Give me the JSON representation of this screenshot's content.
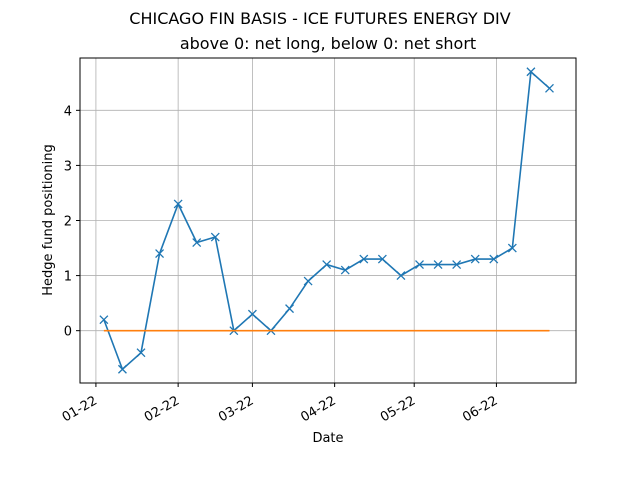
{
  "chart_data": {
    "type": "line",
    "title": "CHICAGO FIN BASIS - ICE FUTURES ENERGY DIV",
    "subtitle": "above 0: net long, below 0: net short",
    "xlabel": "Date",
    "ylabel": "Hedge fund positioning",
    "x_tick_labels": [
      "01-22",
      "02-22",
      "03-22",
      "04-22",
      "05-22",
      "06-22"
    ],
    "x_ticks": [
      "2022-01-01",
      "2022-02-01",
      "2022-03-01",
      "2022-04-01",
      "2022-05-01",
      "2022-06-01"
    ],
    "y_ticks": [
      0,
      1,
      2,
      3,
      4
    ],
    "xlim": [
      "2021-12-26",
      "2022-07-01"
    ],
    "ylim": [
      -0.95,
      4.95
    ],
    "grid": true,
    "series": [
      {
        "color": "#1f77b4",
        "marker": "x",
        "x": [
          "2022-01-04",
          "2022-01-11",
          "2022-01-18",
          "2022-01-25",
          "2022-02-01",
          "2022-02-08",
          "2022-02-15",
          "2022-02-22",
          "2022-03-01",
          "2022-03-08",
          "2022-03-15",
          "2022-03-22",
          "2022-03-29",
          "2022-04-05",
          "2022-04-12",
          "2022-04-19",
          "2022-04-26",
          "2022-05-03",
          "2022-05-10",
          "2022-05-17",
          "2022-05-24",
          "2022-05-31",
          "2022-06-07",
          "2022-06-14",
          "2022-06-21"
        ],
        "values": [
          0.2,
          -0.7,
          -0.4,
          1.4,
          2.3,
          1.6,
          1.7,
          0.0,
          0.3,
          0.0,
          0.4,
          0.9,
          1.2,
          1.1,
          1.3,
          1.3,
          1.0,
          1.2,
          1.2,
          1.2,
          1.3,
          1.3,
          1.5,
          4.7,
          4.4
        ]
      },
      {
        "color": "#ff7f0e",
        "marker": "none",
        "x": [
          "2022-01-04",
          "2022-06-21"
        ],
        "values": [
          0,
          0
        ]
      }
    ]
  }
}
